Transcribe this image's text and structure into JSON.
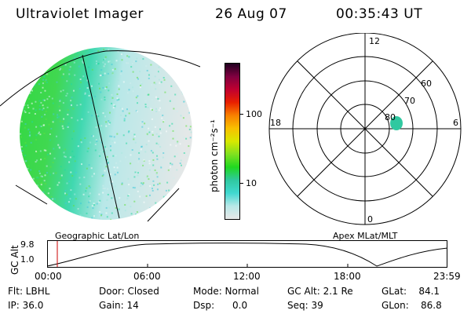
{
  "header": {
    "instrument": "Ultraviolet Imager",
    "date": "26 Aug 07",
    "time": "00:35:43 UT"
  },
  "colorbar": {
    "unit_label": "photon cm⁻²s⁻¹",
    "ticks": [
      "100",
      "10"
    ],
    "colors": [
      "#e8e8e8",
      "#b8e8e8",
      "#40d8d0",
      "#30c8a0",
      "#20d820",
      "#80e020",
      "#d8e800",
      "#f8c000",
      "#f88000",
      "#e82000",
      "#c00030",
      "#800040",
      "#200020"
    ]
  },
  "polar_plot": {
    "mlt_labels": {
      "top": "12",
      "left": "18",
      "right": "6",
      "bottom": "0"
    },
    "lat_labels": [
      "60",
      "70",
      "80"
    ],
    "aurora_color": "#30c8a0"
  },
  "map_labels": {
    "left": "Geographic Lat/Lon",
    "right": "Apex MLat/MLT"
  },
  "altitude_plot": {
    "ylabel": "GC Alt",
    "yticks": [
      "9.8",
      "1.0"
    ],
    "xticks": [
      "00:00",
      "06:00",
      "12:00",
      "18:00",
      "23:59"
    ],
    "marker_color": "#cc0000"
  },
  "info_grid": {
    "col1": [
      "Flt: LBHL",
      "IP: 36.0"
    ],
    "col2": [
      "Door: Closed",
      "Gain: 14"
    ],
    "col3": [
      "Mode: Normal",
      "Dsp:      0.0"
    ],
    "col4": [
      "GC Alt: 2.1 Re",
      "Seq: 39"
    ],
    "col5": [
      "GLat:    84.1",
      "GLon:    86.8"
    ]
  }
}
